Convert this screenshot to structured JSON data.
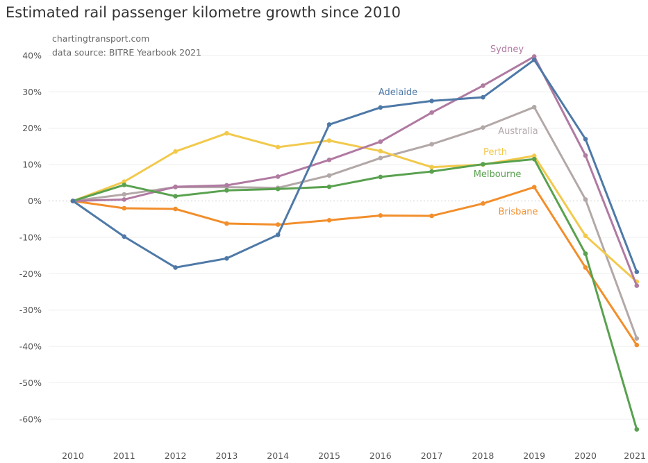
{
  "chart_data": {
    "type": "line",
    "title": "Estimated rail passenger kilometre growth since 2010",
    "annotations": [
      "chartingtransport.com",
      "data source: BITRE Yearbook 2021"
    ],
    "x": [
      "2010",
      "2011",
      "2012",
      "2013",
      "2014",
      "2015",
      "2016",
      "2017",
      "2018",
      "2019",
      "2020",
      "2021"
    ],
    "y_ticks": [
      "40%",
      "30%",
      "20%",
      "10%",
      "0%",
      "-10%",
      "-20%",
      "-30%",
      "-40%",
      "-50%",
      "-60%"
    ],
    "ylim": [
      -65,
      42
    ],
    "grid": true,
    "legend": "inline labels",
    "series": [
      {
        "name": "Australia",
        "color": "#b3a8a8",
        "values": [
          0,
          1.8,
          3.8,
          3.8,
          3.6,
          7.0,
          11.8,
          15.6,
          20.2,
          25.8,
          0.4,
          -37.8
        ]
      },
      {
        "name": "Perth",
        "color": "#f2c94c",
        "values": [
          0,
          5.3,
          13.6,
          18.6,
          14.8,
          16.6,
          13.7,
          9.3,
          10.0,
          12.4,
          -9.6,
          -22.2
        ]
      },
      {
        "name": "Brisbane",
        "color": "#f28e2b",
        "values": [
          0,
          -2.0,
          -2.2,
          -6.2,
          -6.5,
          -5.3,
          -4.0,
          -4.1,
          -0.7,
          3.8,
          -18.3,
          -39.6
        ]
      },
      {
        "name": "Sydney",
        "color": "#b07aa1",
        "values": [
          0,
          0.4,
          3.9,
          4.3,
          6.7,
          11.3,
          16.3,
          24.3,
          31.7,
          39.7,
          12.5,
          -23.3
        ]
      },
      {
        "name": "Melbourne",
        "color": "#59a14f",
        "values": [
          0,
          4.4,
          1.3,
          2.9,
          3.3,
          3.9,
          6.6,
          8.1,
          10.1,
          11.5,
          -14.5,
          -62.8
        ]
      },
      {
        "name": "Adelaide",
        "color": "#4e79a7",
        "values": [
          0,
          -9.8,
          -18.3,
          -15.8,
          -9.3,
          21.0,
          25.7,
          27.5,
          28.5,
          38.8,
          17.0,
          -19.5
        ]
      }
    ],
    "labels": {
      "Sydney": "Sydney",
      "Adelaide": "Adelaide",
      "Australia": "Australia",
      "Perth": "Perth",
      "Melbourne": "Melbourne",
      "Brisbane": "Brisbane"
    }
  }
}
